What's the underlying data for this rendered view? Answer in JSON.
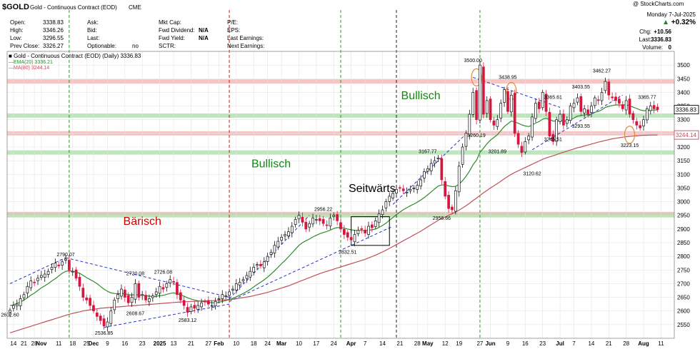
{
  "header": {
    "symbol": "$GOLD",
    "name": "Gold - Continuous Contract (EOD)",
    "exchange": "CME",
    "copyright": "@ StockCharts.com",
    "date": "Monday  7-Jul-2025",
    "change_pct": "+0.32%",
    "chg_label": "Chg:",
    "chg_value": "+10.56",
    "last_label": "Last:",
    "last_value": "3336.83",
    "volume_label": "Volume:",
    "volume_value": "0",
    "col1": [
      {
        "label": "Open:",
        "value": "3338.83"
      },
      {
        "label": "High:",
        "value": "3346.26"
      },
      {
        "label": "Low:",
        "value": "3296.55"
      },
      {
        "label": "Prev Close:",
        "value": "3326.27"
      }
    ],
    "col2": [
      {
        "label": "Ask:",
        "value": ""
      },
      {
        "label": "Bid:",
        "value": ""
      },
      {
        "label": "Last:",
        "value": ""
      },
      {
        "label": "Optionable:",
        "value": "no"
      }
    ],
    "col3": [
      {
        "label": "Mkt Cap:",
        "value": ""
      },
      {
        "label": "Fwd Dividend:",
        "value": "N/A"
      },
      {
        "label": "Fwd Yield:",
        "value": "N/A"
      },
      {
        "label": "SCTR:",
        "value": ""
      }
    ],
    "col4": [
      {
        "label": "P/E:",
        "value": ""
      },
      {
        "label": "EPS:",
        "value": ""
      },
      {
        "label": "Last Earnings:",
        "value": ""
      },
      {
        "label": "Next Earnings:",
        "value": ""
      }
    ]
  },
  "colors": {
    "up_candle": "#ffffff",
    "down_candle": "#d6163f",
    "ema20": "#2e8b2e",
    "ma80": "#c0505a",
    "trendline": "#2233cc",
    "resistance_band": "#f4b0b0",
    "support_band": "#a8dca8",
    "grid": "#e4e4e4"
  },
  "chart_data": {
    "type": "candlestick",
    "title": "$GOLD Gold - Continuous Contract (EOD) CME",
    "legend": [
      {
        "name": "Gold - Continuous Contract (EOD) (Daily) 3336.83",
        "color": "#000000"
      },
      {
        "name": "EMA(20) 3336.21",
        "color": "#2e8b2e"
      },
      {
        "name": "MA(80) 3244.14",
        "color": "#c0505a"
      }
    ],
    "ylim": [
      2500,
      3550
    ],
    "y_ticks": [
      2550,
      2600,
      2650,
      2700,
      2750,
      2800,
      2850,
      2900,
      2950,
      3000,
      3050,
      3100,
      3150,
      3200,
      3250,
      3300,
      3350,
      3400,
      3450,
      3500
    ],
    "x_ticks": [
      "14",
      "21",
      "28",
      "Nov",
      "11",
      "18",
      "25",
      "Dec",
      "9",
      "16",
      "23",
      "2025",
      "13",
      "21",
      "27",
      "Feb",
      "10",
      "18",
      "24",
      "Mar",
      "10",
      "17",
      "24",
      "Apr",
      "7",
      "14",
      "21",
      "28",
      "May",
      "12",
      "19",
      "27",
      "Jun",
      "9",
      "16",
      "23",
      "Jul",
      "7",
      "14",
      "21",
      "28",
      "Aug",
      "11"
    ],
    "x_tick_bar": [
      1,
      4,
      7,
      9,
      14,
      18,
      22,
      24,
      28,
      33,
      38,
      43,
      47,
      52,
      57,
      60,
      65,
      70,
      74,
      78,
      83,
      88,
      93,
      98,
      102,
      107,
      112,
      117,
      120,
      125,
      129,
      135,
      138,
      143,
      148,
      153,
      158,
      162,
      167,
      172,
      177,
      182,
      187
    ],
    "close": [
      2602.6,
      2620,
      2625,
      2645,
      2660,
      2690,
      2710,
      2705,
      2720,
      2730,
      2735,
      2745,
      2760,
      2775,
      2765,
      2780,
      2790.07,
      2750,
      2745,
      2720,
      2690,
      2650,
      2640,
      2620,
      2600,
      2580,
      2565,
      2545,
      2560,
      2600,
      2640,
      2660,
      2680,
      2650,
      2630,
      2650,
      2700,
      2650,
      2660,
      2640,
      2645,
      2655,
      2670,
      2690,
      2680,
      2700,
      2715,
      2705,
      2660,
      2640,
      2620,
      2595,
      2615,
      2610,
      2620,
      2630,
      2635,
      2625,
      2620,
      2635,
      2645,
      2660,
      2655,
      2670,
      2680,
      2700,
      2705,
      2715,
      2730,
      2745,
      2760,
      2770,
      2765,
      2780,
      2800,
      2815,
      2840,
      2855,
      2870,
      2880,
      2890,
      2910,
      2935,
      2950,
      2925,
      2900,
      2920,
      2940,
      2935,
      2930,
      2920,
      2915,
      2940,
      2950,
      2930,
      2900,
      2880,
      2870,
      2860,
      2880,
      2895,
      2900,
      2885,
      2910,
      2905,
      2930,
      2955,
      2970,
      3000,
      3020,
      3030,
      3045,
      3050,
      3040,
      3035,
      3045,
      3050,
      3060,
      3080,
      3110,
      3120,
      3140,
      3150,
      3160,
      3080,
      3020,
      2975,
      2970,
      3040,
      3130,
      3200,
      3250,
      3320,
      3400,
      3300,
      3500,
      3320,
      3370,
      3300,
      3280,
      3300,
      3360,
      3410,
      3330,
      3390,
      3250,
      3210,
      3180,
      3220,
      3240,
      3310,
      3360,
      3340,
      3400,
      3330,
      3240,
      3220,
      3300,
      3320,
      3280,
      3300,
      3350,
      3360,
      3380,
      3330,
      3340,
      3320,
      3350,
      3380,
      3370,
      3400,
      3440,
      3390,
      3380,
      3370,
      3360,
      3340,
      3370,
      3320,
      3300,
      3280,
      3270,
      3300,
      3340,
      3350,
      3340,
      3336.83
    ],
    "series": [
      {
        "name": "EMA(20)",
        "values": [
          2620,
          2622,
          2628,
          2632,
          2640,
          2648,
          2658,
          2665,
          2675,
          2685,
          2692,
          2700,
          2710,
          2718,
          2728,
          2738,
          2745,
          2747,
          2745,
          2742,
          2738,
          2730,
          2722,
          2715,
          2708,
          2700,
          2690,
          2680,
          2672,
          2666,
          2664,
          2663,
          2664,
          2663,
          2660,
          2658,
          2660,
          2658,
          2658,
          2656,
          2654,
          2653,
          2654,
          2656,
          2657,
          2661,
          2664,
          2666,
          2663,
          2659,
          2654,
          2648,
          2644,
          2640,
          2637,
          2635,
          2634,
          2632,
          2630,
          2630,
          2632,
          2635,
          2638,
          2642,
          2646,
          2652,
          2658,
          2664,
          2671,
          2679,
          2688,
          2697,
          2705,
          2714,
          2724,
          2735,
          2747,
          2760,
          2773,
          2785,
          2798,
          2812,
          2826,
          2840,
          2850,
          2857,
          2863,
          2871,
          2877,
          2883,
          2887,
          2891,
          2896,
          2902,
          2905,
          2905,
          2903,
          2900,
          2897,
          2895,
          2895,
          2895,
          2894,
          2896,
          2897,
          2900,
          2906,
          2913,
          2921,
          2932,
          2942,
          2953,
          2962,
          2971,
          2978,
          2985,
          2991,
          2998,
          3006,
          3015,
          3025,
          3036,
          3047,
          3057,
          3061,
          3061,
          3058,
          3055,
          3056,
          3064,
          3077,
          3093,
          3112,
          3135,
          3152,
          3180,
          3195,
          3212,
          3225,
          3235,
          3245,
          3260,
          3275,
          3285,
          3295,
          3292,
          3287,
          3281,
          3277,
          3275,
          3280,
          3288,
          3293,
          3302,
          3305,
          3301,
          3295,
          3295,
          3297,
          3295,
          3295,
          3300,
          3306,
          3313,
          3315,
          3318,
          3318,
          3321,
          3327,
          3330,
          3336,
          3345,
          3349,
          3352,
          3354,
          3354,
          3353,
          3355,
          3351,
          3346,
          3341,
          3336,
          3333,
          3333,
          3335,
          3335,
          3336.21
        ]
      },
      {
        "name": "MA(80)",
        "values": [
          2520,
          2524,
          2528,
          2532,
          2536,
          2540,
          2544,
          2548,
          2552,
          2556,
          2560,
          2564,
          2568,
          2572,
          2576,
          2580,
          2584,
          2588,
          2591,
          2594,
          2597,
          2600,
          2602,
          2604,
          2606,
          2608,
          2610,
          2611,
          2612,
          2613,
          2614,
          2615,
          2616,
          2617,
          2618,
          2619,
          2620,
          2621,
          2622,
          2623,
          2624,
          2625,
          2626,
          2627,
          2628,
          2629,
          2630,
          2631,
          2632,
          2633,
          2634,
          2634,
          2635,
          2635,
          2636,
          2636,
          2637,
          2637,
          2638,
          2638,
          2639,
          2640,
          2641,
          2642,
          2643,
          2645,
          2647,
          2649,
          2651,
          2653,
          2656,
          2659,
          2662,
          2665,
          2668,
          2672,
          2676,
          2680,
          2684,
          2688,
          2692,
          2697,
          2702,
          2707,
          2712,
          2717,
          2722,
          2727,
          2732,
          2737,
          2741,
          2745,
          2749,
          2753,
          2757,
          2761,
          2765,
          2769,
          2773,
          2777,
          2781,
          2785,
          2789,
          2794,
          2799,
          2804,
          2810,
          2816,
          2822,
          2829,
          2836,
          2843,
          2850,
          2857,
          2864,
          2871,
          2878,
          2885,
          2892,
          2900,
          2908,
          2916,
          2924,
          2932,
          2938,
          2944,
          2950,
          2956,
          2962,
          2969,
          2977,
          2985,
          2994,
          3004,
          3013,
          3023,
          3032,
          3041,
          3050,
          3058,
          3066,
          3075,
          3084,
          3092,
          3100,
          3107,
          3113,
          3119,
          3125,
          3131,
          3137,
          3143,
          3149,
          3155,
          3160,
          3164,
          3168,
          3172,
          3177,
          3181,
          3185,
          3189,
          3193,
          3197,
          3200,
          3204,
          3207,
          3211,
          3214,
          3218,
          3221,
          3224,
          3227,
          3230,
          3232,
          3234,
          3236,
          3238,
          3239,
          3240,
          3241,
          3242,
          3243,
          3243,
          3244,
          3244,
          3244.14
        ]
      }
    ],
    "price_labels": [
      {
        "bar": 0,
        "value": 2602.6,
        "text": "2602.60",
        "pos": "below"
      },
      {
        "bar": 16,
        "value": 2790.07,
        "text": "2790.07",
        "pos": "above"
      },
      {
        "bar": 27,
        "value": 2536.85,
        "text": "2536.85",
        "pos": "below"
      },
      {
        "bar": 36,
        "value": 2720.08,
        "text": "2720.08",
        "pos": "above"
      },
      {
        "bar": 36,
        "value": 2608.67,
        "text": "2608.67",
        "pos": "below"
      },
      {
        "bar": 44,
        "value": 2726.08,
        "text": "2726.08",
        "pos": "above"
      },
      {
        "bar": 51,
        "value": 2583.12,
        "text": "2583.12",
        "pos": "below"
      },
      {
        "bar": 90,
        "value": 2956.22,
        "text": "2956.22",
        "pos": "above"
      },
      {
        "bar": 97,
        "value": 2832.51,
        "text": "2832.51",
        "pos": "below"
      },
      {
        "bar": 124,
        "value": 2956.66,
        "text": "2956.66",
        "pos": "below"
      },
      {
        "bar": 120,
        "value": 3167.77,
        "text": "3167.77",
        "pos": "above"
      },
      {
        "bar": 133,
        "value": 3500.0,
        "text": "3500.00",
        "pos": "above"
      },
      {
        "bar": 134,
        "value": 3260.19,
        "text": "3260.19",
        "pos": "below"
      },
      {
        "bar": 143,
        "value": 3438.95,
        "text": "3438.95",
        "pos": "above"
      },
      {
        "bar": 140,
        "value": 3201.89,
        "text": "3201.89",
        "pos": "below"
      },
      {
        "bar": 150,
        "value": 3120.62,
        "text": "3120.62",
        "pos": "below"
      },
      {
        "bar": 156,
        "value": 3365.61,
        "text": "3365.61",
        "pos": "above"
      },
      {
        "bar": 156,
        "value": 3245.51,
        "text": "3245.51",
        "pos": "below"
      },
      {
        "bar": 164,
        "value": 3403.55,
        "text": "3403.55",
        "pos": "above"
      },
      {
        "bar": 164,
        "value": 3293.55,
        "text": "3293.55",
        "pos": "below"
      },
      {
        "bar": 170,
        "value": 3462.27,
        "text": "3462.27",
        "pos": "above"
      },
      {
        "bar": 178,
        "value": 3223.15,
        "text": "3223.15",
        "pos": "below"
      },
      {
        "bar": 183,
        "value": 3365.77,
        "text": "3365.77",
        "pos": "above"
      }
    ],
    "annotations": [
      {
        "text": "Bärisch",
        "bar": 38,
        "value": 2915,
        "color": "#cc0000"
      },
      {
        "text": "Bullisch",
        "bar": 75,
        "value": 3125,
        "color": "#118811"
      },
      {
        "text": "Seitwärts",
        "bar": 104,
        "value": 3035,
        "color": "#000000"
      },
      {
        "text": "Bullisch",
        "bar": 118,
        "value": 3375,
        "color": "#118811"
      }
    ],
    "last_value_tags": [
      {
        "text": "3336.83",
        "value": 3336.83,
        "color": "#000000"
      },
      {
        "text": "3244.14",
        "value": 3244.14,
        "color": "#c0505a"
      }
    ],
    "horizontal_bands": [
      {
        "value": 3440,
        "type": "resistance"
      },
      {
        "value": 3315,
        "type": "support"
      },
      {
        "value": 3250,
        "type": "resistance"
      },
      {
        "value": 3180,
        "type": "support"
      },
      {
        "value": 2955,
        "type": "resistance"
      },
      {
        "value": 2950,
        "type": "support"
      }
    ],
    "vertical_markers": [
      {
        "bar": 17,
        "color": "green"
      },
      {
        "bar": 63,
        "color": "red"
      },
      {
        "bar": 95,
        "color": "green"
      },
      {
        "bar": 111,
        "color": "black"
      },
      {
        "bar": 135,
        "color": "green"
      }
    ],
    "trendlines": [
      {
        "from": [
          0,
          2700
        ],
        "to": [
          16,
          2795
        ]
      },
      {
        "from": [
          16,
          2795
        ],
        "to": [
          63,
          2650
        ]
      },
      {
        "from": [
          27,
          2540
        ],
        "to": [
          63,
          2625
        ]
      },
      {
        "from": [
          63,
          2645
        ],
        "to": [
          86,
          2950
        ]
      },
      {
        "from": [
          63,
          2635
        ],
        "to": [
          110,
          2910
        ]
      },
      {
        "from": [
          110,
          2990
        ],
        "to": [
          132,
          3260
        ]
      },
      {
        "from": [
          133,
          3455
        ],
        "to": [
          158,
          3345
        ]
      },
      {
        "from": [
          150,
          3190
        ],
        "to": [
          176,
          3390
        ]
      }
    ],
    "boxes": [
      {
        "bar_from": 98,
        "bar_to": 109,
        "value_from": 2840,
        "value_to": 2945
      }
    ],
    "ellipses": [
      {
        "bar": 134,
        "value": 3455
      },
      {
        "bar": 144,
        "value": 3405
      },
      {
        "bar": 178,
        "value": 3245
      }
    ]
  }
}
